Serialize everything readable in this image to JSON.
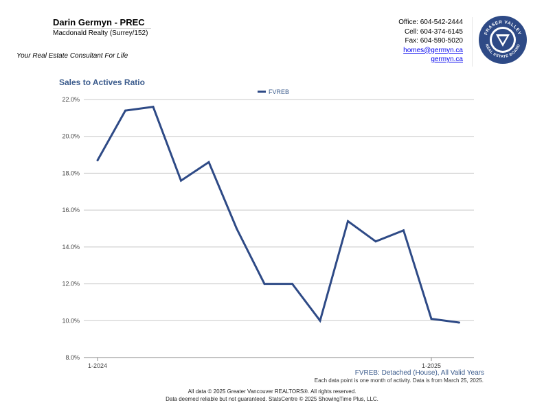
{
  "header": {
    "agent_name": "Darin Germyn - PREC",
    "company": "Macdonald Realty (Surrey/152)",
    "tagline": "Your Real Estate Consultant For Life",
    "office": "Office: 604-542-2444",
    "cell": "Cell: 604-374-6145",
    "fax": "Fax: 604-590-5020",
    "email": "homes@germyn.ca",
    "website": "germyn.ca",
    "logo_text": "FRASER VALLEY REAL ESTATE BOARD"
  },
  "chart_data": {
    "type": "line",
    "title": "Sales to Actives Ratio",
    "legend_position": "top-center",
    "grid": true,
    "ylim": [
      8,
      22
    ],
    "y_ticks": [
      "8.0%",
      "10.0%",
      "12.0%",
      "14.0%",
      "16.0%",
      "18.0%",
      "20.0%",
      "22.0%"
    ],
    "y_tick_values": [
      8,
      10,
      12,
      14,
      16,
      18,
      20,
      22
    ],
    "x_tick_labels": [
      {
        "index": 0,
        "label": "1-2024"
      },
      {
        "index": 12,
        "label": "1-2025"
      }
    ],
    "series": [
      {
        "name": "FVREB",
        "color": "#2e4a86",
        "values": [
          18.7,
          21.4,
          21.6,
          17.6,
          18.6,
          15.0,
          12.0,
          12.0,
          10.0,
          15.4,
          14.3,
          14.9,
          10.1,
          9.9
        ]
      }
    ],
    "subtitle_right": "FVREB: Detached (House), All Valid Years"
  },
  "notes": {
    "data_note": "Each data point is one month of activity. Data is from March 25, 2025.",
    "footer_1": "All data © 2025 Greater Vancouver REALTORS®. All rights reserved.",
    "footer_2": "Data deemed reliable but not guaranteed. StatsCentre © 2025 ShowingTime Plus, LLC."
  },
  "colors": {
    "accent": "#3b5b8c",
    "series": "#2e4a86",
    "logo_bg": "#2e4a86"
  }
}
